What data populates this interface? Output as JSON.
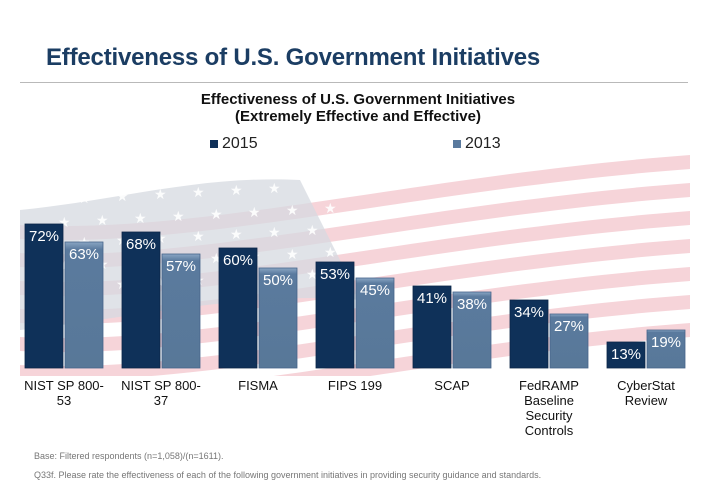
{
  "page": {
    "title": "Effectiveness of U.S. Government Initiatives",
    "footnotes": [
      "Base: Filtered respondents (n=1,058)/(n=1611).",
      "Q33f. Please rate the effectiveness of each of the following government initiatives in providing security guidance and standards."
    ]
  },
  "colors": {
    "title": "#1b3d63",
    "series_2015": "#0f3159",
    "series_2013": "#5a7a9e"
  },
  "chart_data": {
    "type": "bar",
    "title": "Effectiveness of U.S. Government Initiatives",
    "subtitle": "(Extremely Effective and Effective)",
    "xlabel": "",
    "ylabel": "",
    "ylim": [
      0,
      80
    ],
    "grid": false,
    "legend_position": "top",
    "categories": [
      [
        "NIST SP 800-",
        "53"
      ],
      [
        "NIST SP 800-",
        "37"
      ],
      [
        "FISMA"
      ],
      [
        "FIPS 199"
      ],
      [
        "SCAP"
      ],
      [
        "FedRAMP",
        "Baseline",
        "Security",
        "Controls"
      ],
      [
        "CyberStat",
        "Review"
      ]
    ],
    "series": [
      {
        "name": "2015",
        "values": [
          72,
          68,
          60,
          53,
          41,
          34,
          13
        ],
        "labels": [
          "72%",
          "68%",
          "60%",
          "53%",
          "41%",
          "34%",
          "13%"
        ]
      },
      {
        "name": "2013",
        "values": [
          63,
          57,
          50,
          45,
          38,
          27,
          19
        ],
        "labels": [
          "63%",
          "57%",
          "50%",
          "45%",
          "38%",
          "27%",
          "19%"
        ]
      }
    ]
  }
}
